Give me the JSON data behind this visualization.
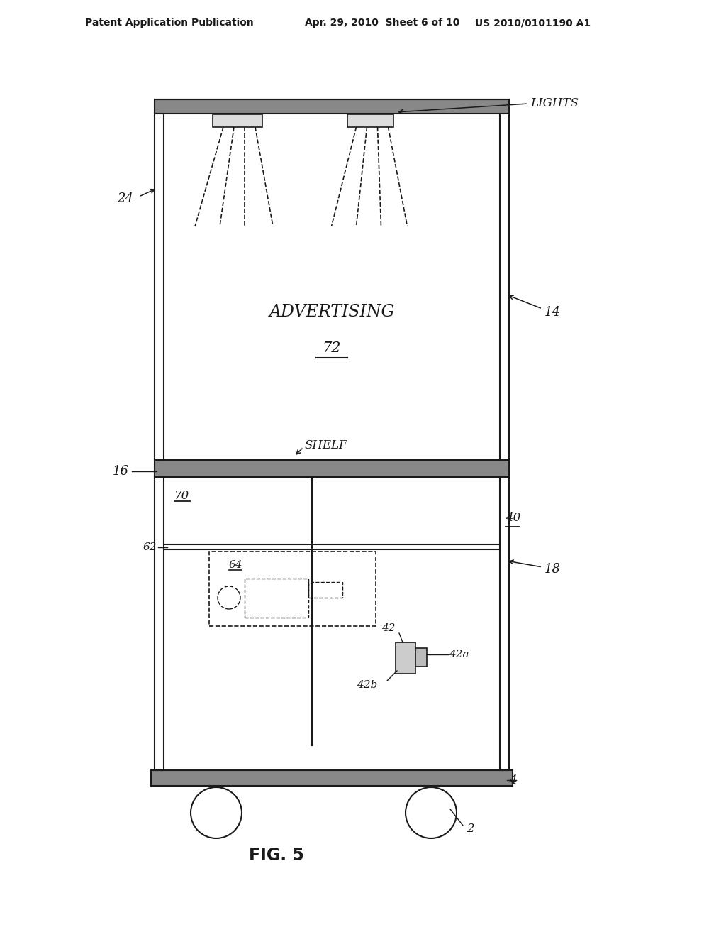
{
  "bg_color": "#ffffff",
  "line_color": "#1a1a1a",
  "header_text_left": "Patent Application Publication",
  "header_text_mid": "Apr. 29, 2010  Sheet 6 of 10",
  "header_text_right": "US 2010/0101190 A1",
  "fig_label": "FIG. 5",
  "labels": {
    "advertising": "ADVERTISING",
    "adv_num": "72",
    "lights": "LIGHTS",
    "num_14": "14",
    "num_16": "16",
    "num_18": "18",
    "num_24": "24",
    "num_40": "40",
    "num_42": "42",
    "num_42a": "42a",
    "num_42b": "42b",
    "num_62": "62",
    "num_64": "64",
    "num_70": "70",
    "num_2": "2",
    "num_4": "4",
    "shelf": "SHELF"
  }
}
